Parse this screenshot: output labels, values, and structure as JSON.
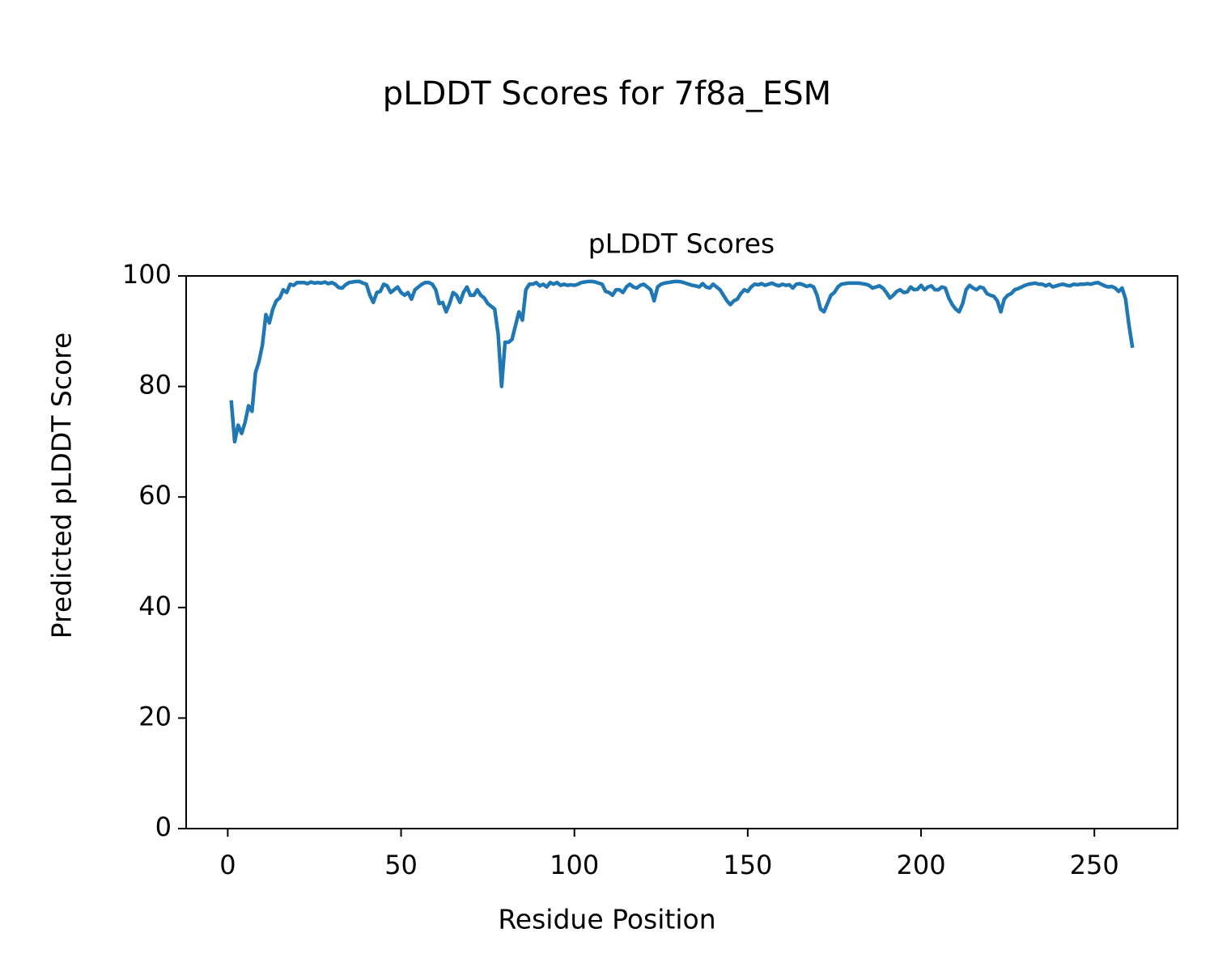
{
  "chart_data": {
    "type": "line",
    "title": "pLDDT Scores for 7f8a_ESM",
    "subtitle": "pLDDT Scores",
    "x_label": "Residue Position",
    "y_label": "Predicted pLDDT Score",
    "xlim": [
      -12,
      274
    ],
    "ylim": [
      0,
      100
    ],
    "xticks": [
      0,
      50,
      100,
      150,
      200,
      250
    ],
    "yticks": [
      0,
      20,
      40,
      60,
      80,
      100
    ],
    "grid": false,
    "x": [
      1,
      2,
      3,
      4,
      5,
      6,
      7,
      8,
      9,
      10,
      11,
      12,
      13,
      14,
      15,
      16,
      17,
      18,
      19,
      20,
      21,
      22,
      23,
      24,
      25,
      26,
      27,
      28,
      29,
      30,
      31,
      32,
      33,
      34,
      35,
      36,
      37,
      38,
      39,
      40,
      41,
      42,
      43,
      44,
      45,
      46,
      47,
      48,
      49,
      50,
      51,
      52,
      53,
      54,
      55,
      56,
      57,
      58,
      59,
      60,
      61,
      62,
      63,
      64,
      65,
      66,
      67,
      68,
      69,
      70,
      71,
      72,
      73,
      74,
      75,
      76,
      77,
      78,
      79,
      80,
      81,
      82,
      83,
      84,
      85,
      86,
      87,
      88,
      89,
      90,
      91,
      92,
      93,
      94,
      95,
      96,
      97,
      98,
      99,
      100,
      101,
      102,
      103,
      104,
      105,
      106,
      107,
      108,
      109,
      110,
      111,
      112,
      113,
      114,
      115,
      116,
      117,
      118,
      119,
      120,
      121,
      122,
      123,
      124,
      125,
      126,
      127,
      128,
      129,
      130,
      131,
      132,
      133,
      134,
      135,
      136,
      137,
      138,
      139,
      140,
      141,
      142,
      143,
      144,
      145,
      146,
      147,
      148,
      149,
      150,
      151,
      152,
      153,
      154,
      155,
      156,
      157,
      158,
      159,
      160,
      161,
      162,
      163,
      164,
      165,
      166,
      167,
      168,
      169,
      170,
      171,
      172,
      173,
      174,
      175,
      176,
      177,
      178,
      179,
      180,
      181,
      182,
      183,
      184,
      185,
      186,
      187,
      188,
      189,
      190,
      191,
      192,
      193,
      194,
      195,
      196,
      197,
      198,
      199,
      200,
      201,
      202,
      203,
      204,
      205,
      206,
      207,
      208,
      209,
      210,
      211,
      212,
      213,
      214,
      215,
      216,
      217,
      218,
      219,
      220,
      221,
      222,
      223,
      224,
      225,
      226,
      227,
      228,
      229,
      230,
      231,
      232,
      233,
      234,
      235,
      236,
      237,
      238,
      239,
      240,
      241,
      242,
      243,
      244,
      245,
      246,
      247,
      248,
      249,
      250,
      251,
      252,
      253,
      254,
      255,
      256,
      257,
      258,
      259,
      260,
      261
    ],
    "series": [
      {
        "color": "#1f77b4",
        "values": [
          77.5,
          70,
          73,
          71.5,
          73.5,
          76.5,
          75.5,
          82.5,
          84.5,
          87.5,
          93,
          91.5,
          94,
          95.5,
          96,
          97.5,
          97,
          98.5,
          98.3,
          98.8,
          98.8,
          98.8,
          98.6,
          98.9,
          98.7,
          98.8,
          98.7,
          98.9,
          98.6,
          98.8,
          98.5,
          97.9,
          97.8,
          98.4,
          98.8,
          98.9,
          99,
          99,
          98.7,
          98.5,
          96.5,
          95.2,
          97,
          97.2,
          98.5,
          98.2,
          97,
          97.5,
          98,
          97,
          96.5,
          97,
          95.8,
          97.5,
          98,
          98.5,
          98.8,
          98.8,
          98.5,
          97.5,
          95,
          95.2,
          93.5,
          95,
          97,
          96.5,
          95.2,
          97,
          98,
          96.5,
          96.5,
          97.5,
          96.5,
          96,
          95,
          94.5,
          94,
          89.5,
          80,
          88,
          88,
          88.5,
          91,
          93.5,
          92,
          97.5,
          98.5,
          98.5,
          98.8,
          98.2,
          98.5,
          98,
          98.8,
          98.5,
          98.8,
          98.3,
          98.5,
          98.3,
          98.4,
          98.3,
          98.5,
          98.8,
          98.9,
          99,
          99,
          98.9,
          98.7,
          98.5,
          97.2,
          97,
          96.5,
          97.5,
          97.5,
          97,
          98,
          98.5,
          98,
          97.8,
          98.3,
          98.5,
          98,
          97.5,
          95.5,
          98,
          98.5,
          98.7,
          98.8,
          98.9,
          99,
          99,
          98.9,
          98.7,
          98.5,
          98.3,
          98.2,
          98,
          98.6,
          98,
          97.8,
          98.5,
          98,
          97.5,
          96.5,
          95.5,
          94.8,
          95.5,
          95.8,
          96.8,
          97.5,
          97.2,
          98,
          98.5,
          98.4,
          98.6,
          98.3,
          98.5,
          98.7,
          98.4,
          98.2,
          98.5,
          98.3,
          98.4,
          97.8,
          98.5,
          98.6,
          98.4,
          98.1,
          98.3,
          98,
          96.5,
          94,
          93.5,
          95,
          96.5,
          97,
          98,
          98.5,
          98.6,
          98.7,
          98.7,
          98.7,
          98.7,
          98.6,
          98.5,
          98.3,
          97.8,
          98,
          98.2,
          97.8,
          97,
          96,
          96.5,
          97.2,
          97.5,
          97,
          97.1,
          98,
          97.5,
          97.6,
          98.3,
          97.5,
          98,
          98.2,
          97.5,
          97.5,
          98,
          97.8,
          96,
          94.8,
          94,
          93.5,
          95,
          97.5,
          98.3,
          97.8,
          97.5,
          98,
          97.8,
          96.8,
          96.5,
          96.3,
          95.5,
          93.5,
          95.8,
          96.5,
          96.8,
          97.5,
          97.7,
          98,
          98.3,
          98.5,
          98.6,
          98.7,
          98.5,
          98.5,
          98.2,
          98.5,
          98,
          98.2,
          98.4,
          98.5,
          98.3,
          98.2,
          98.5,
          98.4,
          98.5,
          98.5,
          98.6,
          98.5,
          98.7,
          98.8,
          98.5,
          98.2,
          98,
          98.1,
          97.8,
          97.2,
          97.8,
          95.8,
          91,
          87
        ]
      }
    ]
  }
}
